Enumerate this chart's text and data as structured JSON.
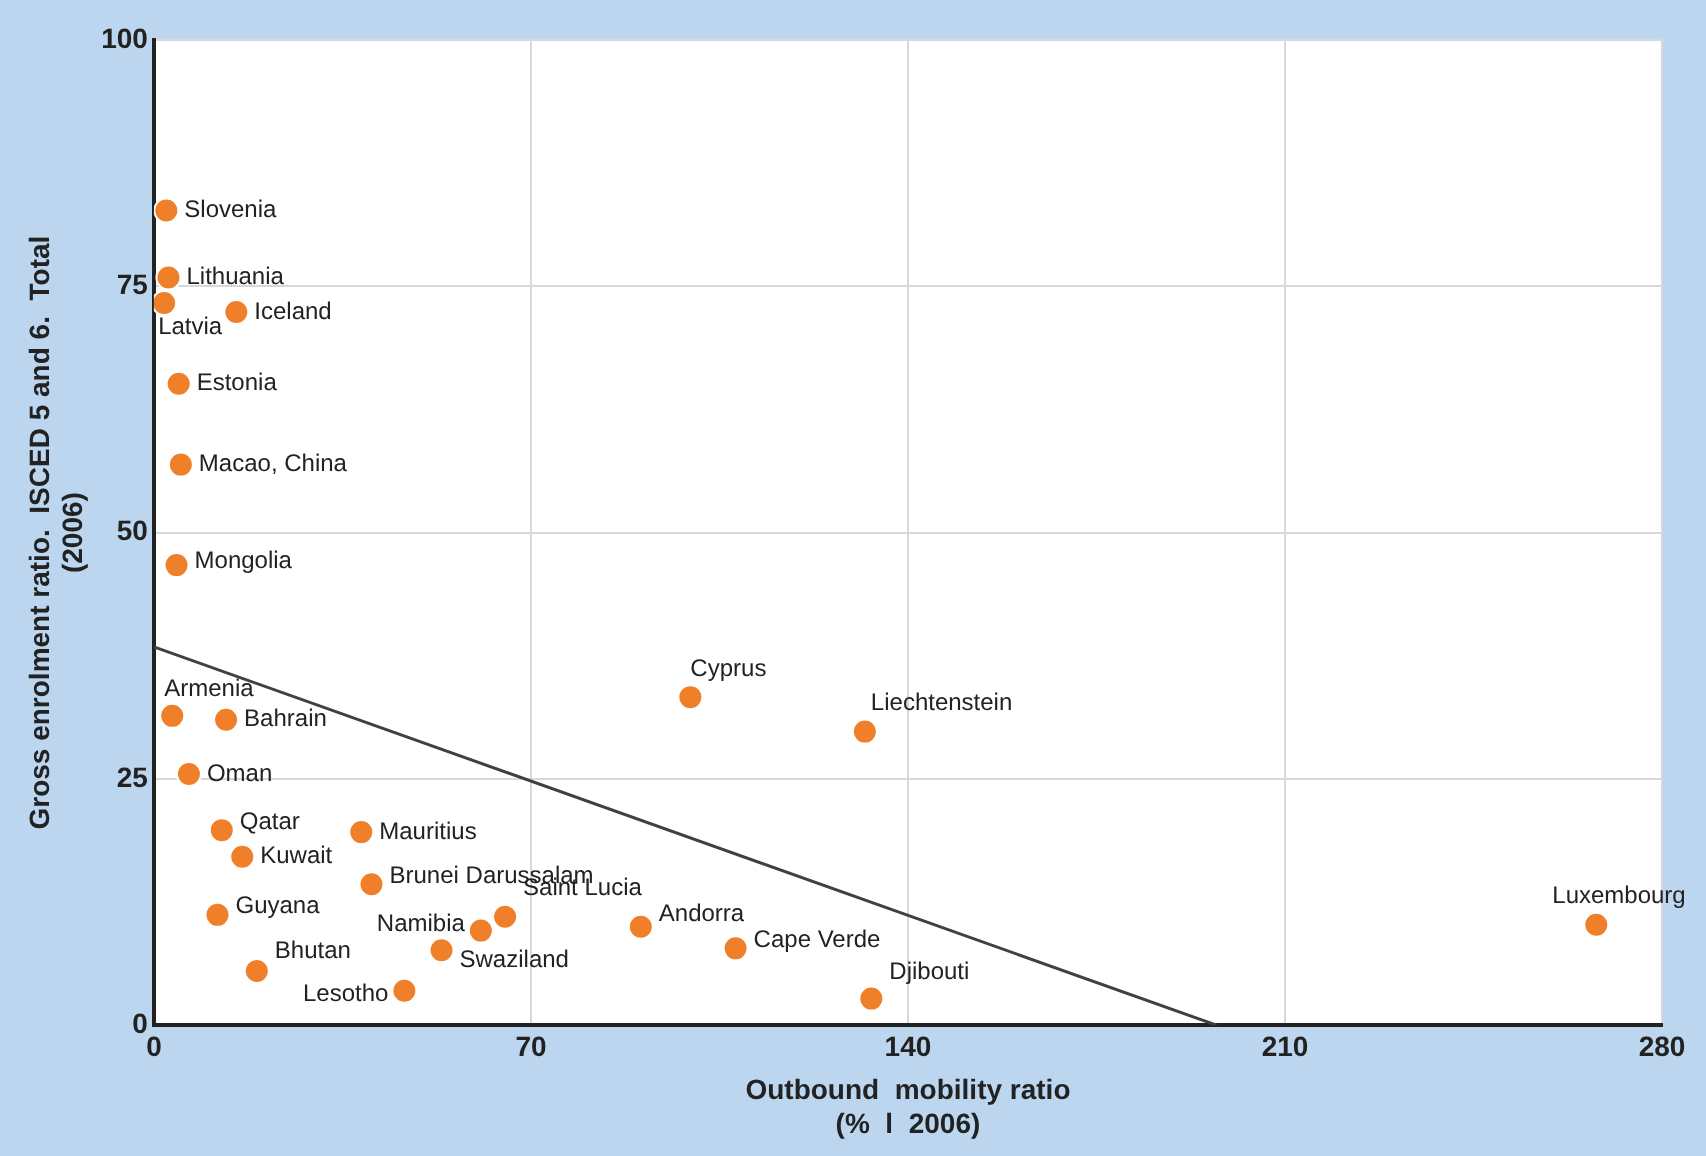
{
  "chart_data": {
    "type": "scatter",
    "xlabel": "Outbound  mobility ratio\n(%  l  2006)",
    "ylabel": "Gross enrolment ratio.  ISCED 5 and 6.  Total\n(2006)",
    "xlim": [
      0,
      280
    ],
    "xticks": [
      0,
      70,
      140,
      210,
      280
    ],
    "ylim": [
      0,
      100
    ],
    "yticks": [
      0,
      25,
      50,
      75,
      100
    ],
    "grid": true,
    "legend": false,
    "series": [
      {
        "marker": "circle",
        "color": "#f07f2a",
        "x": [
          2.3,
          2.7,
          1.9,
          15.3,
          4.6,
          5.0,
          4.2,
          3.4,
          13.4,
          6.5,
          12.6,
          16.4,
          11.8,
          19.1,
          38.5,
          40.4,
          65.2,
          60.7,
          53.4,
          46.5,
          90.4,
          108.0,
          133.2,
          99.6,
          132.0,
          267.8
        ],
        "values": [
          82.7,
          75.9,
          73.3,
          72.4,
          65.1,
          56.9,
          46.7,
          31.4,
          31.0,
          25.5,
          19.8,
          17.1,
          11.2,
          5.5,
          19.6,
          14.3,
          11.0,
          9.6,
          7.6,
          3.5,
          10.0,
          7.8,
          2.7,
          33.3,
          29.8,
          10.2
        ]
      },
      {
        "type": "line",
        "marker": "none",
        "color": "#404040",
        "x": [
          0,
          197.3
        ],
        "values": [
          38.4,
          0
        ]
      }
    ],
    "annotations": [
      {
        "text": "Slovenia",
        "x": 2.3,
        "y": 82.7
      },
      {
        "text": "Lithuania",
        "x": 2.7,
        "y": 75.9
      },
      {
        "text": "Latvia",
        "x": 1.9,
        "y": 73.3
      },
      {
        "text": "Iceland",
        "x": 15.3,
        "y": 72.4
      },
      {
        "text": "Estonia",
        "x": 4.6,
        "y": 65.1
      },
      {
        "text": "Macao, China",
        "x": 5.0,
        "y": 56.9
      },
      {
        "text": "Mongolia",
        "x": 4.2,
        "y": 46.7
      },
      {
        "text": "Armenia",
        "x": 3.4,
        "y": 31.4
      },
      {
        "text": "Bahrain",
        "x": 13.4,
        "y": 31.0
      },
      {
        "text": "Oman",
        "x": 6.5,
        "y": 25.5
      },
      {
        "text": "Qatar",
        "x": 12.6,
        "y": 19.8
      },
      {
        "text": "Kuwait",
        "x": 16.4,
        "y": 17.1
      },
      {
        "text": "Guyana",
        "x": 11.8,
        "y": 11.2
      },
      {
        "text": "Bhutan",
        "x": 19.1,
        "y": 5.5
      },
      {
        "text": "Mauritius",
        "x": 38.5,
        "y": 19.6
      },
      {
        "text": "Brunei Darussalam",
        "x": 40.4,
        "y": 14.3
      },
      {
        "text": "Saint Lucia",
        "x": 65.2,
        "y": 11.0
      },
      {
        "text": "Namibia",
        "x": 60.7,
        "y": 9.6
      },
      {
        "text": "Swaziland",
        "x": 53.4,
        "y": 7.6
      },
      {
        "text": "Lesotho",
        "x": 46.5,
        "y": 3.5
      },
      {
        "text": "Andorra",
        "x": 90.4,
        "y": 10.0
      },
      {
        "text": "Cape Verde",
        "x": 108.0,
        "y": 7.8
      },
      {
        "text": "Djibouti",
        "x": 133.2,
        "y": 2.7
      },
      {
        "text": "Cyprus",
        "x": 99.6,
        "y": 33.3
      },
      {
        "text": "Liechtenstein",
        "x": 132.0,
        "y": 29.8
      },
      {
        "text": "Luxembourg",
        "x": 267.8,
        "y": 10.2
      }
    ]
  }
}
